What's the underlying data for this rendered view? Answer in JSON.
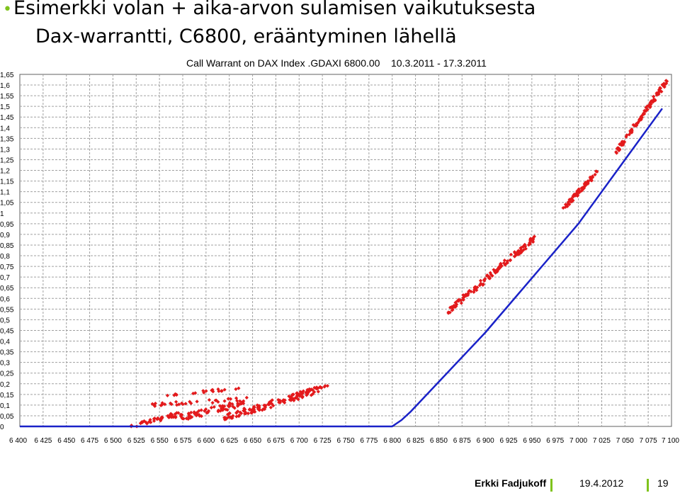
{
  "slide": {
    "bullet": "•",
    "title": "Esimerkki volan + aika-arvon sulamisen vaikutuksesta",
    "subtitle": "Dax-warrantti, C6800, erääntyminen lähellä"
  },
  "footer": {
    "author": "Erkki Fadjukoff",
    "date": "19.4.2012",
    "page": "19"
  },
  "colors": {
    "market_price": "#e31a1c",
    "intrinsic_value": "#1a22c8",
    "grid": "#a0a0a0"
  },
  "chart_data": {
    "type": "scatter",
    "title": "Call Warrant on DAX Index .GDAXI 6800.00    10.3.2011 - 17.3.2011",
    "xlabel": "",
    "ylabel": "",
    "xlim": [
      6400,
      7100
    ],
    "ylim": [
      0,
      1.65
    ],
    "x_ticks": [
      6400,
      6425,
      6450,
      6475,
      6500,
      6525,
      6550,
      6575,
      6600,
      6625,
      6650,
      6675,
      6700,
      6725,
      6750,
      6775,
      6800,
      6825,
      6850,
      6875,
      6900,
      6925,
      6950,
      6975,
      7000,
      7025,
      7050,
      7075,
      7100
    ],
    "x_tick_labels": [
      "6 400",
      "6 425",
      "6 450",
      "6 475",
      "6 500",
      "6 525",
      "6 550",
      "6 575",
      "6 600",
      "6 625",
      "6 650",
      "6 675",
      "6 700",
      "6 725",
      "6 750",
      "6 775",
      "6 800",
      "6 825",
      "6 850",
      "6 875",
      "6 900",
      "6 925",
      "6 950",
      "6 975",
      "7 000",
      "7 025",
      "7 050",
      "7 075",
      "7 100"
    ],
    "y_ticks": [
      0,
      0.05,
      0.1,
      0.15,
      0.2,
      0.25,
      0.3,
      0.35,
      0.4,
      0.45,
      0.5,
      0.55,
      0.6,
      0.65,
      0.7,
      0.75,
      0.8,
      0.85,
      0.9,
      0.95,
      1,
      1.05,
      1.1,
      1.15,
      1.2,
      1.25,
      1.3,
      1.35,
      1.4,
      1.45,
      1.5,
      1.55,
      1.6,
      1.65
    ],
    "y_tick_labels": [
      "0",
      "0,05",
      "0,1",
      "0,15",
      "0,2",
      "0,25",
      "0,3",
      "0,35",
      "0,4",
      "0,45",
      "0,5",
      "0,55",
      "0,6",
      "0,65",
      "0,7",
      "0,75",
      "0,8",
      "0,85",
      "0,9",
      "0,95",
      "1",
      "1,05",
      "1,1",
      "1,15",
      "1,2",
      "1,25",
      "1,3",
      "1,35",
      "1,4",
      "1,45",
      "1,5",
      "1,55",
      "1,6",
      "1,65"
    ],
    "grid": true,
    "legend": "none",
    "series": [
      {
        "type": "line",
        "points": [
          [
            6400,
            0.0
          ],
          [
            6800,
            0.0
          ],
          [
            6810,
            0.03
          ],
          [
            6820,
            0.07
          ],
          [
            6900,
            0.44
          ],
          [
            7000,
            0.95
          ],
          [
            7090,
            1.49
          ]
        ]
      },
      {
        "type": "scatter",
        "clusters": [
          {
            "from": [
              6520,
              0.0
            ],
            "to": [
              6570,
              0.06
            ],
            "spread": 0.01,
            "count": 45
          },
          {
            "from": [
              6565,
              0.03
            ],
            "to": [
              6640,
              0.11
            ],
            "spread": 0.016,
            "count": 70
          },
          {
            "from": [
              6620,
              0.04
            ],
            "to": [
              6720,
              0.17
            ],
            "spread": 0.016,
            "count": 130
          },
          {
            "from": [
              6560,
              0.15
            ],
            "to": [
              6640,
              0.18
            ],
            "spread": 0.006,
            "count": 20
          },
          {
            "from": [
              6540,
              0.1
            ],
            "to": [
              6650,
              0.13
            ],
            "spread": 0.008,
            "count": 30
          },
          {
            "from": [
              6700,
              0.16
            ],
            "to": [
              6730,
              0.19
            ],
            "spread": 0.005,
            "count": 15
          },
          {
            "from": [
              6860,
              0.54
            ],
            "to": [
              6955,
              0.89
            ],
            "spread": 0.012,
            "count": 130
          },
          {
            "from": [
              6985,
              1.03
            ],
            "to": [
              7020,
              1.19
            ],
            "spread": 0.01,
            "count": 65
          },
          {
            "from": [
              7040,
              1.28
            ],
            "to": [
              7095,
              1.62
            ],
            "spread": 0.008,
            "count": 110
          }
        ]
      }
    ]
  }
}
